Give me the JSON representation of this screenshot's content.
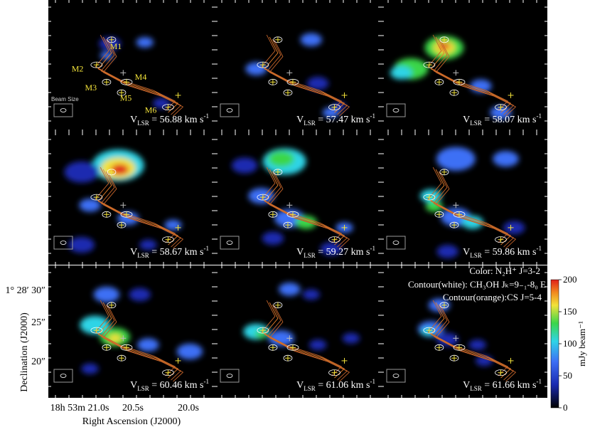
{
  "chart_data": {
    "type": "heatmap",
    "grid": {
      "rows": 3,
      "cols": 3
    },
    "channels": [
      {
        "label_prefix": "V",
        "label_sub": "LSR",
        "value": "56.88",
        "unit": "km s",
        "unit_sup": "-1"
      },
      {
        "label_prefix": "V",
        "label_sub": "LSR",
        "value": "57.47",
        "unit": "km s",
        "unit_sup": "-1"
      },
      {
        "label_prefix": "V",
        "label_sub": "LSR",
        "value": "58.07",
        "unit": "km s",
        "unit_sup": "-1"
      },
      {
        "label_prefix": "V",
        "label_sub": "LSR",
        "value": "58.67",
        "unit": "km s",
        "unit_sup": "-1"
      },
      {
        "label_prefix": "V",
        "label_sub": "LSR",
        "value": "59.27",
        "unit": "km s",
        "unit_sup": "-1"
      },
      {
        "label_prefix": "V",
        "label_sub": "LSR",
        "value": "59.86",
        "unit": "km s",
        "unit_sup": "-1"
      },
      {
        "label_prefix": "V",
        "label_sub": "LSR",
        "value": "60.46",
        "unit": "km s",
        "unit_sup": "-1"
      },
      {
        "label_prefix": "V",
        "label_sub": "LSR",
        "value": "61.06",
        "unit": "km s",
        "unit_sup": "-1"
      },
      {
        "label_prefix": "V",
        "label_sub": "LSR",
        "value": "61.66",
        "unit": "km s",
        "unit_sup": "-1"
      }
    ],
    "sources": [
      "M1",
      "M2",
      "M3",
      "M4",
      "M5",
      "M6"
    ],
    "beam_label": "Beam Size",
    "xlabel": "Right Ascension (J2000)",
    "ylabel": "Declination (J2000)",
    "xticks": [
      "18h 53m 21.0s",
      "20.5s",
      "20.0s"
    ],
    "yticks": [
      "1° 28′ 30″",
      "25″",
      "20″"
    ],
    "legend": {
      "color": "Color: N₂H⁺ J=3-2",
      "contour_white": "Contour(white): CH₃OH Jₖ=9₋₁-8₀ E",
      "contour_orange": "Contour(orange):CS J=5-4"
    },
    "colorbar": {
      "label": "mJy beam⁻¹",
      "ticks": [
        "0",
        "50",
        "100",
        "150",
        "200"
      ],
      "range": [
        0,
        200
      ],
      "colors": [
        "#000000",
        "#1a2ab0",
        "#3d6ff5",
        "#2fd4e6",
        "#3bd64a",
        "#f2e23a",
        "#f28a1e",
        "#e0201a"
      ]
    }
  }
}
